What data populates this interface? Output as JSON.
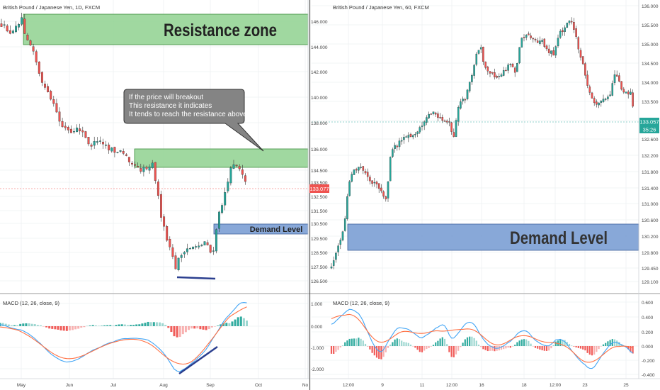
{
  "left_chart": {
    "title": "British Pound / Japanese Yen, 1D, FXCM",
    "price_ticks": [
      "146.000",
      "144.000",
      "142.000",
      "140.000",
      "138.000",
      "136.000",
      "134.500",
      "133.500",
      "132.500",
      "131.500",
      "130.500",
      "129.500",
      "128.500",
      "127.500",
      "126.500"
    ],
    "current_price": "133.077",
    "x_ticks": [
      "May",
      "Jun",
      "Jul",
      "Aug",
      "Sep",
      "Oct",
      "No"
    ],
    "resistance_zone_label": "Resistance zone",
    "demand_level_label": "Demand Level",
    "callout_lines": [
      "If the price will breakout",
      "This resistance it indicates",
      "It tends to reach the resistance above"
    ],
    "macd_title": "MACD (12, 26, close, 9)",
    "macd_ticks": [
      "1.000",
      "0.000",
      "-1.000",
      "-2.000"
    ]
  },
  "right_chart": {
    "title": "British Pound / Japanese Yen, 60, FXCM",
    "price_ticks": [
      "136.000",
      "135.500",
      "135.000",
      "134.500",
      "134.000",
      "133.500",
      "133.000",
      "132.600",
      "132.200",
      "131.800",
      "131.400",
      "131.000",
      "130.600",
      "130.200",
      "129.800",
      "129.450",
      "129.100"
    ],
    "current_price": "133.057",
    "countdown": "35:26",
    "x_ticks": [
      "12:00",
      "9",
      "11",
      "12:00",
      "16",
      "18",
      "12:00",
      "23",
      "25"
    ],
    "demand_level_label": "Demand Level",
    "macd_title": "MACD (12, 26, close, 9)",
    "macd_ticks": [
      "0.600",
      "0.400",
      "0.200",
      "0.000",
      "-0.200",
      "-0.400"
    ]
  },
  "colors": {
    "up": "#26a69a",
    "down": "#ef5350",
    "resistance_fill": "#8fd18f",
    "demand_fill": "#7b9fd4",
    "macd_line": "#42a5f5",
    "signal_line": "#ff7043",
    "price_line": "#ef5350",
    "right_price_line": "#26a69a"
  },
  "chart_data": [
    {
      "type": "candlestick",
      "title": "British Pound / Japanese Yen, 1D, FXCM",
      "x_range": [
        "May",
        "No"
      ],
      "ylim": [
        126.5,
        146.5
      ],
      "approx_close_path": [
        {
          "t": "early May",
          "price": 145.5
        },
        {
          "t": "May",
          "price": 146.2
        },
        {
          "t": "mid May",
          "price": 142.5
        },
        {
          "t": "late May",
          "price": 140.0
        },
        {
          "t": "Jun",
          "price": 138.2
        },
        {
          "t": "mid Jun",
          "price": 137.0
        },
        {
          "t": "Jul",
          "price": 136.0
        },
        {
          "t": "mid Jul",
          "price": 134.8
        },
        {
          "t": "late Jul",
          "price": 134.5
        },
        {
          "t": "Aug",
          "price": 130.0
        },
        {
          "t": "mid Aug",
          "price": 127.4
        },
        {
          "t": "late Aug",
          "price": 128.5
        },
        {
          "t": "Sep",
          "price": 131.0
        },
        {
          "t": "mid Sep",
          "price": 134.8
        },
        {
          "t": "late Sep",
          "price": 133.077
        }
      ],
      "annotations": [
        "Resistance zone",
        "Demand Level",
        "If the price will breakout",
        "This resistance it indicates",
        "It tends to reach the resistance above"
      ],
      "last_price": 133.077,
      "grid": true
    },
    {
      "type": "candlestick",
      "title": "British Pound / Japanese Yen, 60, FXCM",
      "x_range": [
        "12:00",
        "25"
      ],
      "ylim": [
        129.1,
        136.0
      ],
      "approx_close_path": [
        {
          "t": "start",
          "price": 129.4
        },
        {
          "t": "12:00",
          "price": 131.2
        },
        {
          "t": "9",
          "price": 131.1
        },
        {
          "t": "after 9",
          "price": 132.5
        },
        {
          "t": "11",
          "price": 133.0
        },
        {
          "t": "12:00",
          "price": 133.3
        },
        {
          "t": "16",
          "price": 135.1
        },
        {
          "t": "after 16",
          "price": 133.7
        },
        {
          "t": "18",
          "price": 135.3
        },
        {
          "t": "12:00",
          "price": 135.3
        },
        {
          "t": "peak",
          "price": 135.7
        },
        {
          "t": "23",
          "price": 133.5
        },
        {
          "t": "25",
          "price": 133.7
        },
        {
          "t": "last",
          "price": 133.057
        }
      ],
      "annotations": [
        "Demand Level"
      ],
      "last_price": 133.057,
      "grid": true
    },
    {
      "type": "line",
      "title": "MACD (12, 26, close, 9)",
      "series": [
        {
          "name": "MACD"
        },
        {
          "name": "Signal"
        }
      ],
      "ylim": [
        -2.4,
        1.3
      ]
    },
    {
      "type": "line",
      "title": "MACD (12, 26, close, 9)",
      "series": [
        {
          "name": "MACD"
        },
        {
          "name": "Signal"
        }
      ],
      "ylim": [
        -0.42,
        0.62
      ]
    }
  ]
}
